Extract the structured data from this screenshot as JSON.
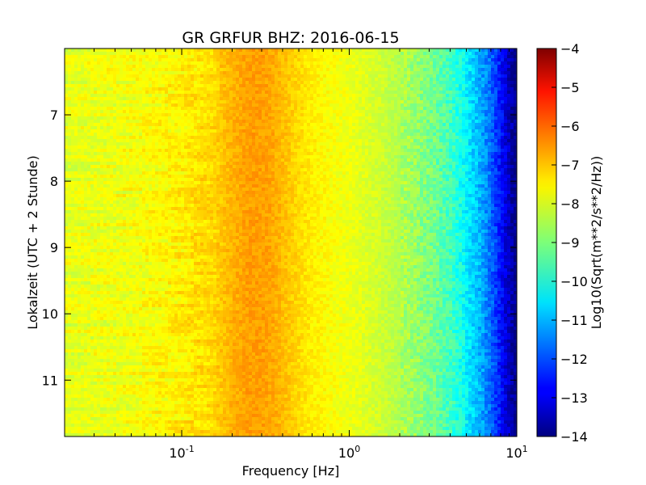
{
  "chart_data": {
    "type": "heatmap",
    "title": "GR GRFUR BHZ: 2016-06-15",
    "xlabel": "Frequency [Hz]",
    "ylabel": "Lokalzeit (UTC + 2 Stunde)",
    "colorbar_label": "Log10(Sqrt(m**2/s**2/Hz))",
    "x_scale": "log",
    "xlim": [
      0.02,
      10
    ],
    "ylim": [
      11.85,
      6.0
    ],
    "y_inverted": true,
    "clim": [
      -14,
      -4
    ],
    "colormap": "jet",
    "x_ticks": [
      {
        "value": 0.1,
        "base": "10",
        "exp": "-1"
      },
      {
        "value": 1,
        "base": "10",
        "exp": "0"
      },
      {
        "value": 10,
        "base": "10",
        "exp": "1"
      }
    ],
    "y_ticks": [
      7,
      8,
      9,
      10,
      11
    ],
    "colorbar_ticks": [
      -4,
      -5,
      -6,
      -7,
      -8,
      -9,
      -10,
      -11,
      -12,
      -13,
      -14
    ],
    "frequency_profile": {
      "frequency_hz": [
        0.02,
        0.04,
        0.06,
        0.08,
        0.1,
        0.12,
        0.15,
        0.2,
        0.25,
        0.3,
        0.35,
        0.4,
        0.5,
        0.6,
        0.8,
        1.0,
        1.5,
        2.0,
        3.0,
        4.0,
        5.0,
        6.0,
        7.0,
        8.0,
        9.0,
        10.0
      ],
      "level": [
        -8.0,
        -7.9,
        -7.8,
        -7.7,
        -7.6,
        -7.5,
        -7.4,
        -7.0,
        -6.8,
        -6.8,
        -6.9,
        -7.1,
        -7.4,
        -7.6,
        -7.8,
        -7.9,
        -8.2,
        -8.5,
        -9.0,
        -9.6,
        -10.3,
        -11.0,
        -11.7,
        -12.6,
        -13.4,
        -14.0
      ]
    },
    "time_events_low_freq": [
      {
        "hour": 6.05,
        "level": -6.4
      },
      {
        "hour": 6.22,
        "level": -7.1
      },
      {
        "hour": 6.45,
        "level": -6.9
      },
      {
        "hour": 7.1,
        "level": -5.9
      },
      {
        "hour": 7.33,
        "level": -6.5
      },
      {
        "hour": 7.9,
        "level": -6.6
      },
      {
        "hour": 8.2,
        "level": -5.9
      },
      {
        "hour": 8.45,
        "level": -5.9
      },
      {
        "hour": 8.6,
        "level": -6.4
      },
      {
        "hour": 8.9,
        "level": -6.7
      },
      {
        "hour": 9.5,
        "level": -6.3
      },
      {
        "hour": 11.7,
        "level": -7.2
      }
    ],
    "grid": false
  }
}
